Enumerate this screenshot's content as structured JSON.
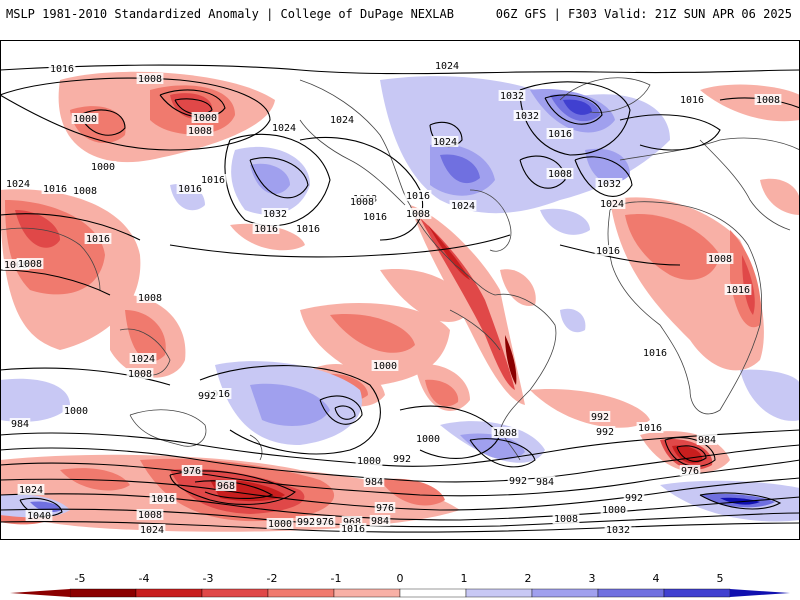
{
  "header": {
    "left": "MSLP 1981-2010 Standardized Anomaly | College of DuPage NEXLAB",
    "right": "06Z GFS | F303 Valid: 21Z SUN APR 06 2025"
  },
  "colors": {
    "neg5": "#8b0000",
    "neg4": "#c81e1e",
    "neg3": "#e04848",
    "neg2": "#f07a6e",
    "neg1": "#f8b0a6",
    "pos1": "#c8c8f4",
    "pos2": "#a0a0ee",
    "pos3": "#7070e0",
    "pos4": "#4040d0",
    "pos5": "#1010b0"
  },
  "map": {
    "contour_labels": [
      {
        "text": "1016"
      },
      {
        "text": "1008"
      },
      {
        "text": "1000"
      },
      {
        "text": "1000"
      },
      {
        "text": "1008"
      },
      {
        "text": "1024"
      },
      {
        "text": "1024"
      },
      {
        "text": "1032"
      },
      {
        "text": "1024"
      },
      {
        "text": "1032"
      },
      {
        "text": "1016"
      },
      {
        "text": "1008"
      },
      {
        "text": "1016"
      },
      {
        "text": "1000"
      },
      {
        "text": "1024"
      },
      {
        "text": "1016"
      },
      {
        "text": "1008"
      },
      {
        "text": "1016"
      },
      {
        "text": "1032"
      },
      {
        "text": "1008"
      },
      {
        "text": "1016"
      },
      {
        "text": "1016"
      },
      {
        "text": "1008"
      },
      {
        "text": "1024"
      },
      {
        "text": "1032"
      },
      {
        "text": "1024"
      },
      {
        "text": "1016"
      },
      {
        "text": "1008"
      },
      {
        "text": "1008"
      },
      {
        "text": "1016"
      },
      {
        "text": "1008"
      },
      {
        "text": "1008"
      },
      {
        "text": "1016"
      },
      {
        "text": "1008"
      },
      {
        "text": "1016"
      },
      {
        "text": "1024"
      },
      {
        "text": "1016"
      },
      {
        "text": "1008"
      },
      {
        "text": "1016"
      },
      {
        "text": "1016"
      },
      {
        "text": "1024"
      },
      {
        "text": "1008"
      },
      {
        "text": "1016"
      },
      {
        "text": "1000"
      },
      {
        "text": "992"
      },
      {
        "text": "1016"
      },
      {
        "text": "1008"
      },
      {
        "text": "992"
      },
      {
        "text": "984"
      },
      {
        "text": "976"
      },
      {
        "text": "984"
      },
      {
        "text": "1000"
      },
      {
        "text": "992"
      },
      {
        "text": "1000"
      },
      {
        "text": "992"
      },
      {
        "text": "1000"
      },
      {
        "text": "984"
      },
      {
        "text": "992"
      },
      {
        "text": "984"
      },
      {
        "text": "976"
      },
      {
        "text": "1024"
      },
      {
        "text": "968"
      },
      {
        "text": "1016"
      },
      {
        "text": "1040"
      },
      {
        "text": "1008"
      },
      {
        "text": "1024"
      },
      {
        "text": "1000"
      },
      {
        "text": "992"
      },
      {
        "text": "976"
      },
      {
        "text": "968"
      },
      {
        "text": "984"
      },
      {
        "text": "1016"
      },
      {
        "text": "976"
      },
      {
        "text": "992"
      },
      {
        "text": "1008"
      },
      {
        "text": "1000"
      },
      {
        "text": "1032"
      }
    ]
  },
  "colorbar": {
    "ticks": [
      "-5",
      "-4",
      "-3",
      "-2",
      "-1",
      "0",
      "1",
      "2",
      "3",
      "4",
      "5"
    ]
  }
}
